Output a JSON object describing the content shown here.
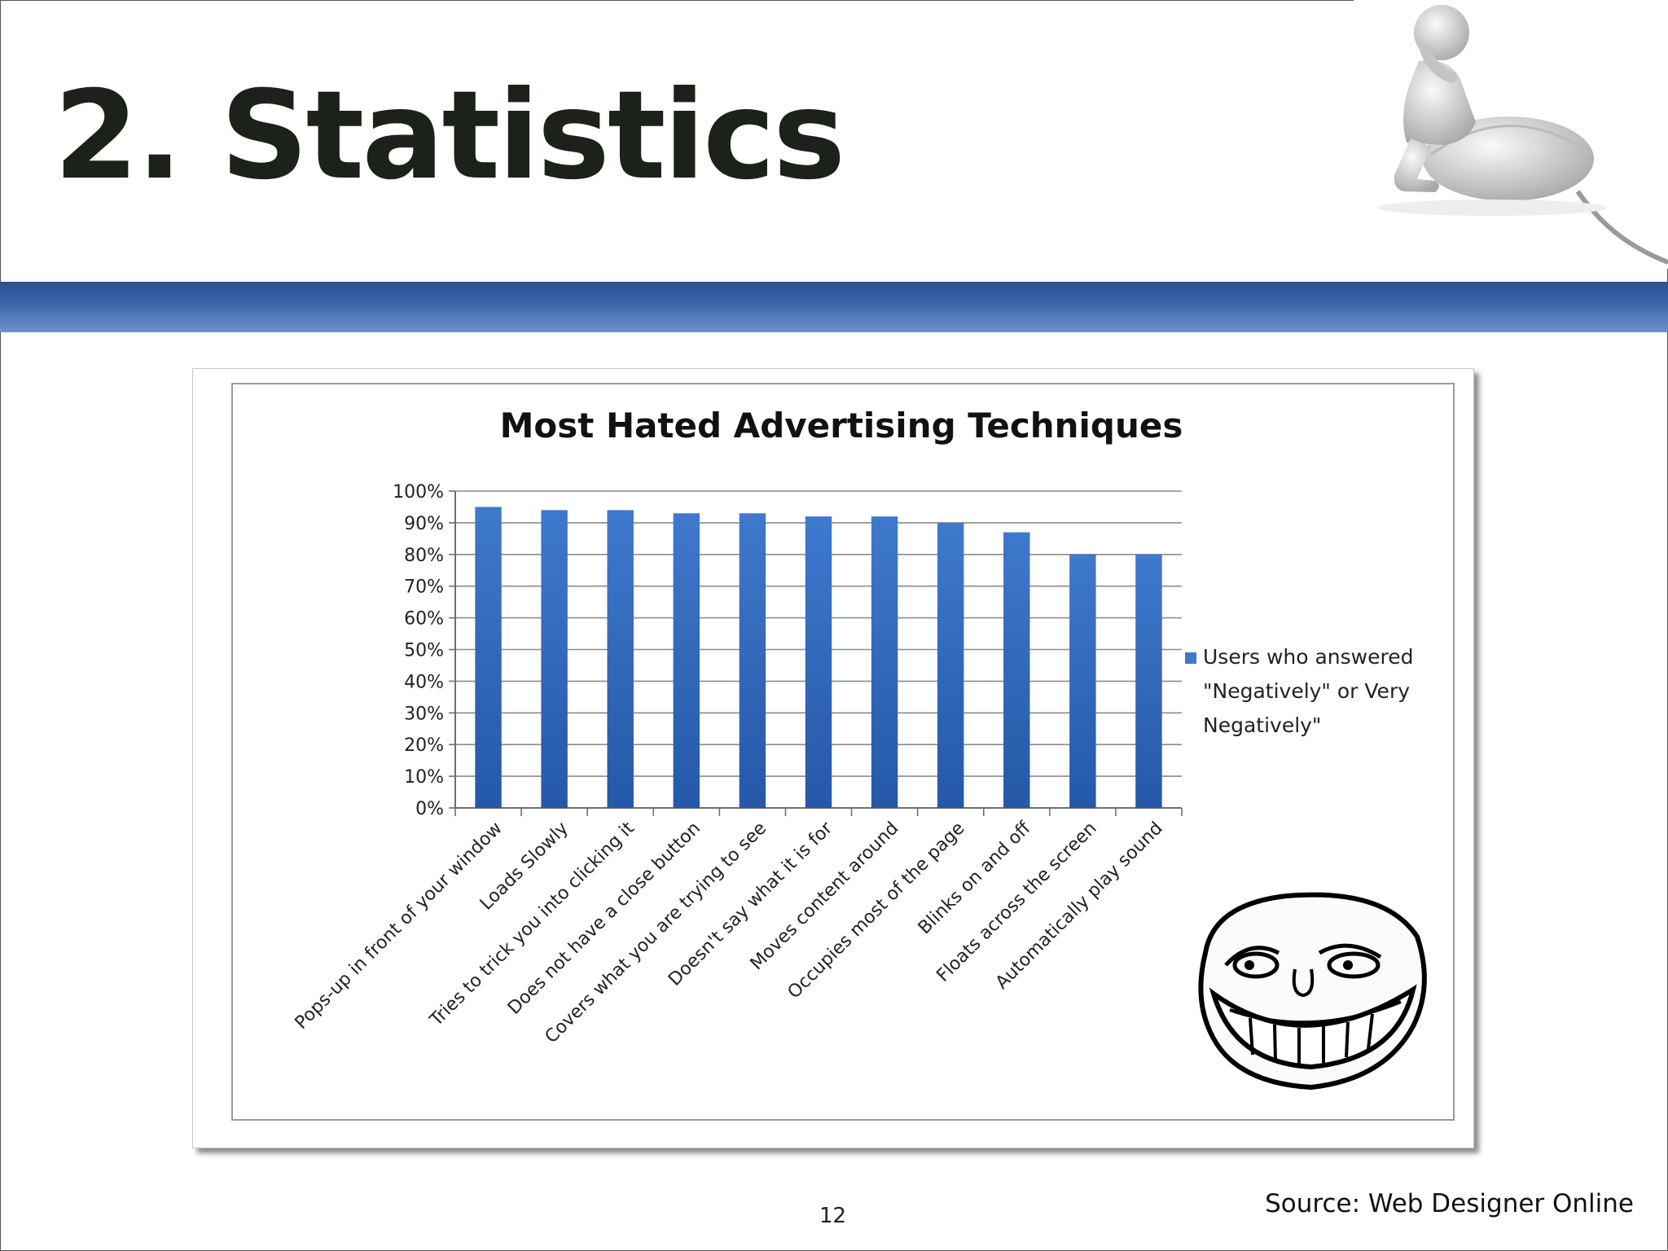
{
  "slide": {
    "title": "2. Statistics",
    "page_number": "12",
    "source": "Source: Web Designer Online"
  },
  "colors": {
    "band": "#3a5fa3",
    "bar": "#3f79cc",
    "bar_dark": "#2558a8",
    "title": "#1c221a"
  },
  "images": {
    "top_right": "thinking-3d-figure-on-computer-mouse",
    "chart_corner": "trollface-meme"
  },
  "chart_data": {
    "type": "bar",
    "title": "Most Hated Advertising Techniques",
    "xlabel": "",
    "ylabel": "",
    "ylim": [
      0,
      100
    ],
    "y_ticks": [
      "0%",
      "10%",
      "20%",
      "30%",
      "40%",
      "50%",
      "60%",
      "70%",
      "80%",
      "90%",
      "100%"
    ],
    "grid": true,
    "legend_position": "right",
    "categories": [
      "Pops-up in front of your window",
      "Loads Slowly",
      "Tries to trick you into clicking it",
      "Does not have a close button",
      "Covers what you are trying to see",
      "Doesn't say what it is for",
      "Moves content around",
      "Occupies most of the page",
      "Blinks on and off",
      "Floats across the screen",
      "Automatically play sound"
    ],
    "series": [
      {
        "name": "Users who answered \"Negatively\" or Very Negatively\"",
        "values": [
          95,
          94,
          94,
          93,
          93,
          92,
          92,
          90,
          87,
          80,
          80
        ]
      }
    ]
  }
}
